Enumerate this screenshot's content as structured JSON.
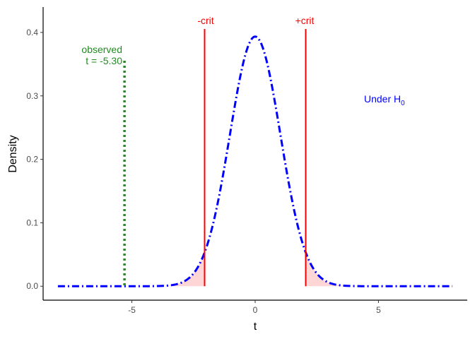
{
  "chart_data": {
    "type": "line",
    "xlabel": "t",
    "ylabel": "Density",
    "xlim": [
      -8.6,
      8.6
    ],
    "ylim": [
      -0.022,
      0.44
    ],
    "x_ticks": [
      -5,
      0,
      5
    ],
    "x_tick_labels": [
      "-5",
      "0",
      "5"
    ],
    "y_ticks": [
      0.0,
      0.1,
      0.2,
      0.3,
      0.4
    ],
    "y_tick_labels": [
      "0.0",
      "0.1",
      "0.2",
      "0.3",
      "0.4"
    ],
    "grid": false,
    "series": [
      {
        "x": [
          -8,
          -7.5,
          -7,
          -6.5,
          -6,
          -5.5,
          -5,
          -4.5,
          -4,
          -3.5,
          -3,
          -2.5,
          -2,
          -1.5,
          -1,
          -0.5,
          0,
          0.5,
          1,
          1.5,
          2,
          2.5,
          3,
          3.5,
          4,
          4.5,
          5,
          5.5,
          6,
          6.5,
          7,
          7.5,
          8
        ],
        "y": [
          0.0,
          0.0,
          0.0,
          0.0,
          0.0,
          0.0,
          0.0,
          0.0001,
          0.0004,
          0.0015,
          0.0052,
          0.0173,
          0.0554,
          0.1318,
          0.2428,
          0.3521,
          0.3935,
          0.3521,
          0.2428,
          0.1318,
          0.0554,
          0.0173,
          0.0052,
          0.0015,
          0.0004,
          0.0001,
          0.0,
          0.0,
          0.0,
          0.0,
          0.0,
          0.0,
          0.0
        ],
        "color": "#0000ff",
        "linestyle": "dotdash"
      }
    ],
    "critical_values": {
      "lower": -2.05,
      "upper": 2.05,
      "lower_label": "-crit",
      "upper_label": "+crit",
      "color": "#ff0000",
      "rejection_fill": "#ffd6d6"
    },
    "observed": {
      "value": -5.3,
      "label_line1": "observed",
      "label_line2": "t = -5.30",
      "color": "#228b22"
    },
    "annotation": {
      "text": "Under H",
      "subscript": "0",
      "x": 5.5,
      "y": 0.3,
      "color": "#0000ff"
    }
  }
}
